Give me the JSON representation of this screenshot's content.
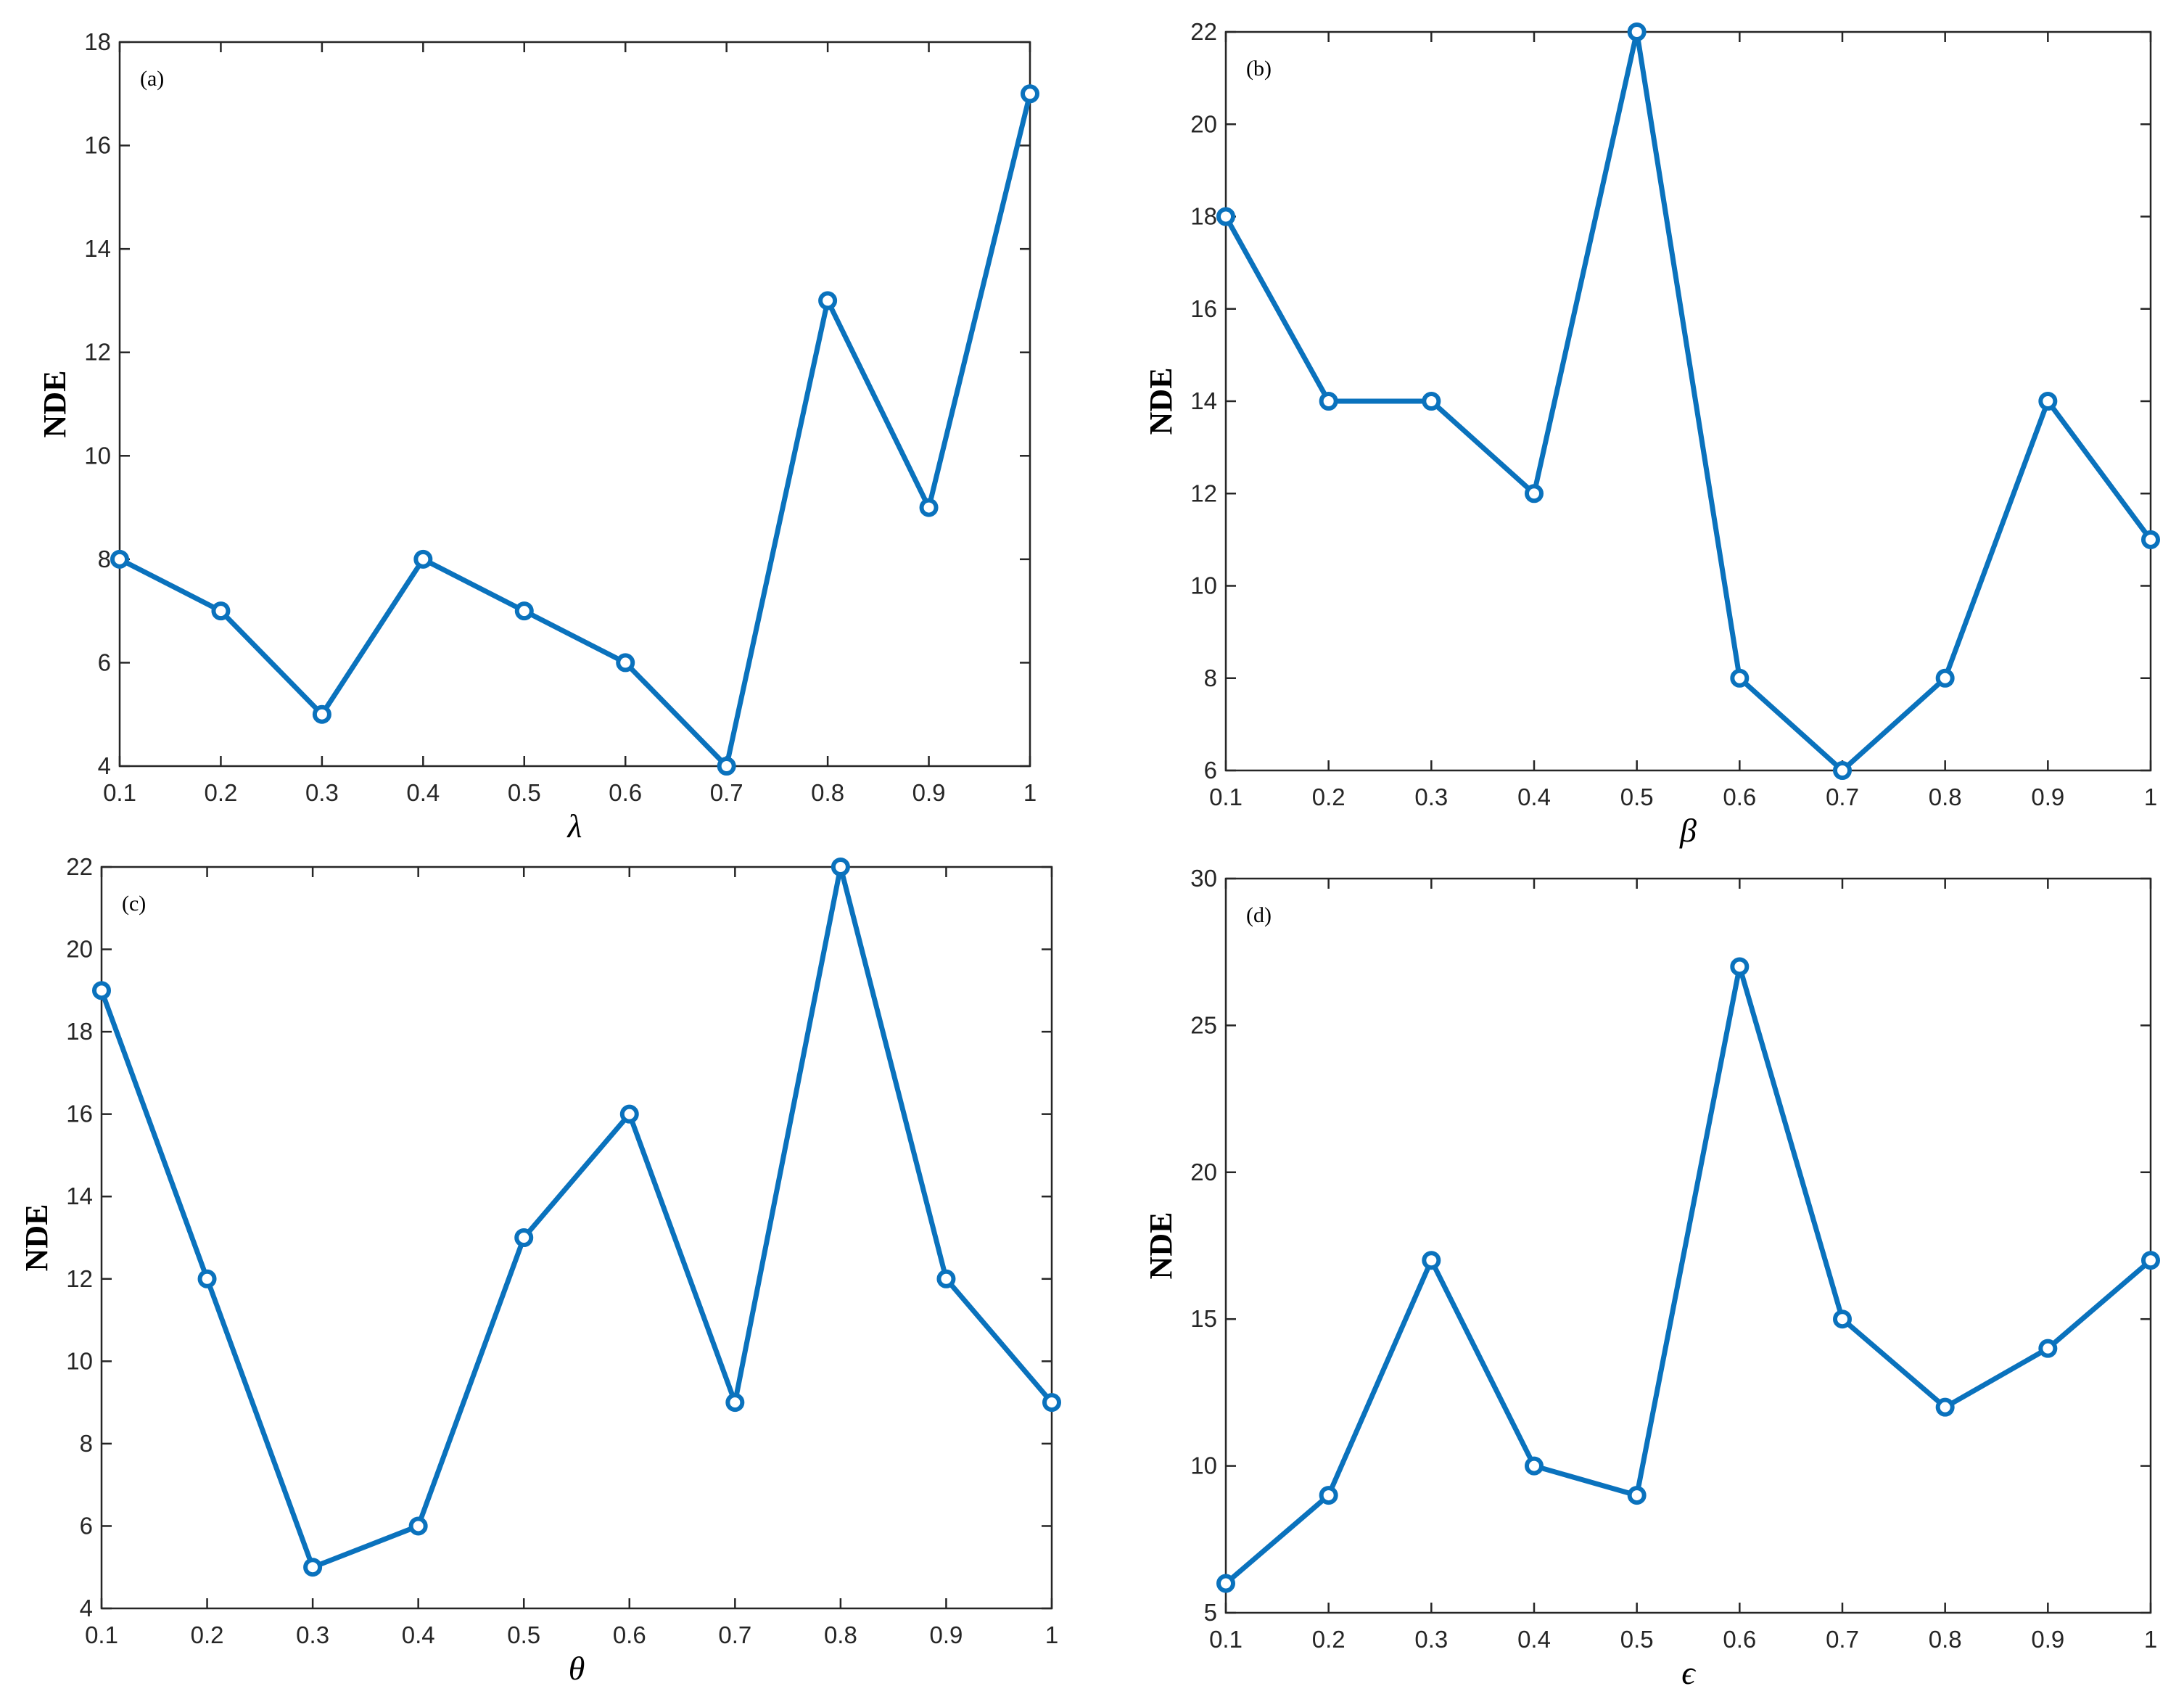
{
  "colors": {
    "series": "#0a72bd",
    "axis": "#262626"
  },
  "chart_data": [
    {
      "type": "line",
      "panel_label": "(a)",
      "xlabel": "λ",
      "ylabel": "NDE",
      "x": [
        0.1,
        0.2,
        0.3,
        0.4,
        0.5,
        0.6,
        0.7,
        0.8,
        0.9,
        1
      ],
      "values": [
        8,
        7,
        5,
        8,
        7,
        6,
        4,
        13,
        9,
        17
      ],
      "xlim": [
        0.1,
        1
      ],
      "ylim": [
        4,
        18
      ],
      "xticks": [
        "0.1",
        "0.2",
        "0.3",
        "0.4",
        "0.5",
        "0.6",
        "0.7",
        "0.8",
        "0.9",
        "1"
      ],
      "yticks": [
        "4",
        "6",
        "8",
        "10",
        "12",
        "14",
        "16",
        "18"
      ],
      "marker": "circle",
      "grid": false
    },
    {
      "type": "line",
      "panel_label": "(b)",
      "xlabel": "β",
      "ylabel": "NDE",
      "x": [
        0.1,
        0.2,
        0.3,
        0.4,
        0.5,
        0.6,
        0.7,
        0.8,
        0.9,
        1
      ],
      "values": [
        18,
        14,
        14,
        12,
        22,
        8,
        6,
        8,
        14,
        11
      ],
      "xlim": [
        0.1,
        1
      ],
      "ylim": [
        6,
        22
      ],
      "xticks": [
        "0.1",
        "0.2",
        "0.3",
        "0.4",
        "0.5",
        "0.6",
        "0.7",
        "0.8",
        "0.9",
        "1"
      ],
      "yticks": [
        "6",
        "8",
        "10",
        "12",
        "14",
        "16",
        "18",
        "20",
        "22"
      ],
      "marker": "circle",
      "grid": false
    },
    {
      "type": "line",
      "panel_label": "(c)",
      "xlabel": "θ",
      "ylabel": "NDE",
      "x": [
        0.1,
        0.2,
        0.3,
        0.4,
        0.5,
        0.6,
        0.7,
        0.8,
        0.9,
        1
      ],
      "values": [
        19,
        12,
        5,
        6,
        13,
        16,
        9,
        22,
        12,
        9
      ],
      "xlim": [
        0.1,
        1
      ],
      "ylim": [
        4,
        22
      ],
      "xticks": [
        "0.1",
        "0.2",
        "0.3",
        "0.4",
        "0.5",
        "0.6",
        "0.7",
        "0.8",
        "0.9",
        "1"
      ],
      "yticks": [
        "4",
        "6",
        "8",
        "10",
        "12",
        "14",
        "16",
        "18",
        "20",
        "22"
      ],
      "marker": "circle",
      "grid": false
    },
    {
      "type": "line",
      "panel_label": "(d)",
      "xlabel": "ϵ",
      "ylabel": "NDE",
      "x": [
        0.1,
        0.2,
        0.3,
        0.4,
        0.5,
        0.6,
        0.7,
        0.8,
        0.9,
        1
      ],
      "values": [
        6,
        9,
        17,
        10,
        9,
        27,
        15,
        12,
        14,
        17
      ],
      "xlim": [
        0.1,
        1
      ],
      "ylim": [
        5,
        30
      ],
      "xticks": [
        "0.1",
        "0.2",
        "0.3",
        "0.4",
        "0.5",
        "0.6",
        "0.7",
        "0.8",
        "0.9",
        "1"
      ],
      "yticks": [
        "5",
        "10",
        "15",
        "20",
        "25",
        "30"
      ],
      "marker": "circle",
      "grid": false
    }
  ]
}
